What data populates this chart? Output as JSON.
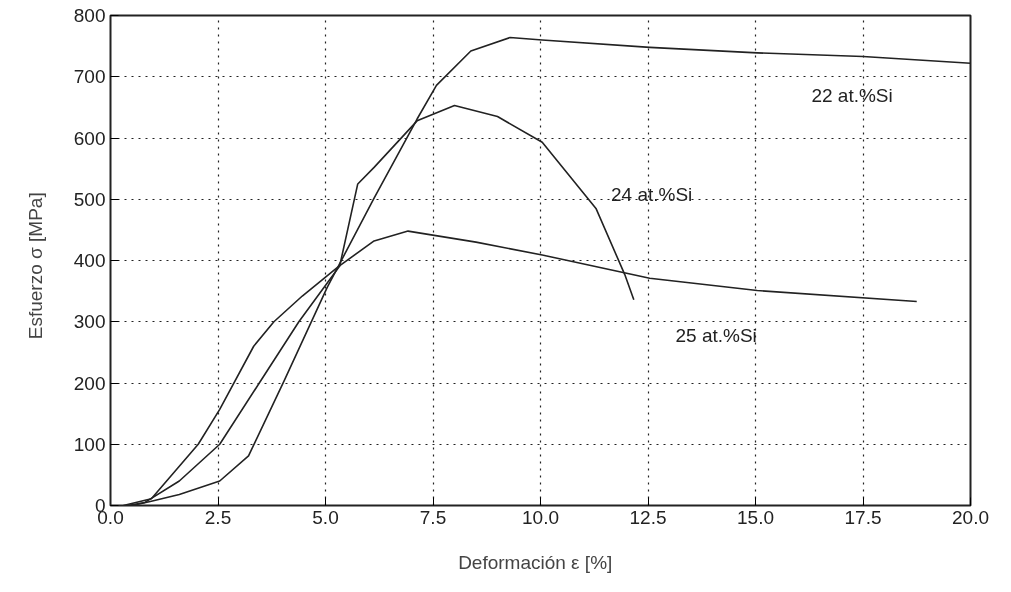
{
  "chart_data": {
    "type": "line",
    "xlabel": "Deformación ε   [%]",
    "ylabel": "Esfuerzo σ   [MPa]",
    "xlim": [
      0,
      20
    ],
    "ylim": [
      0,
      800
    ],
    "xticks": [
      {
        "value": 0,
        "label": "0.0"
      },
      {
        "value": 2.5,
        "label": "2.5"
      },
      {
        "value": 5,
        "label": "5.0"
      },
      {
        "value": 7.5,
        "label": "7.5"
      },
      {
        "value": 10,
        "label": "10.0"
      },
      {
        "value": 12.5,
        "label": "12.5"
      },
      {
        "value": 15,
        "label": "15.0"
      },
      {
        "value": 17.5,
        "label": "17.5"
      },
      {
        "value": 20,
        "label": "20.0"
      }
    ],
    "yticks": [
      0,
      100,
      200,
      300,
      400,
      500,
      600,
      700,
      800
    ],
    "grid": true,
    "marker": "none",
    "line_style": "solid",
    "series": [
      {
        "name": "22 at.%Si",
        "color": "#222222",
        "x": [
          0.5,
          0.95,
          1.6,
          2.54,
          3.21,
          4.04,
          5.04,
          6.13,
          7.13,
          7.58,
          8.38,
          9.29,
          10.04,
          12.54,
          15.04,
          17.5,
          20
        ],
        "values": [
          0,
          7,
          18,
          40,
          81,
          204,
          356,
          502,
          631,
          686,
          742,
          764,
          760,
          748,
          739,
          733,
          722
        ]
      },
      {
        "name": "24 at.%Si",
        "color": "#222222",
        "x": [
          0.4,
          0.8,
          1.6,
          2.54,
          3.46,
          4.38,
          5.33,
          5.75,
          6.13,
          7.13,
          8.0,
          9.0,
          10.04,
          11.29,
          11.96,
          12.17
        ],
        "values": [
          0,
          5,
          40,
          100,
          200,
          300,
          391,
          525,
          552,
          628,
          653,
          635,
          593,
          485,
          377,
          336
        ]
      },
      {
        "name": "25 at.%Si",
        "color": "#222222",
        "x": [
          0.3,
          0.95,
          2.04,
          2.54,
          3.33,
          3.8,
          4.46,
          5.3,
          6.13,
          6.92,
          8.5,
          10.04,
          12.54,
          15.04,
          18.75
        ],
        "values": [
          0,
          11,
          100,
          157,
          260,
          300,
          342,
          390,
          432,
          448,
          430,
          409,
          371,
          351,
          333
        ]
      }
    ]
  }
}
